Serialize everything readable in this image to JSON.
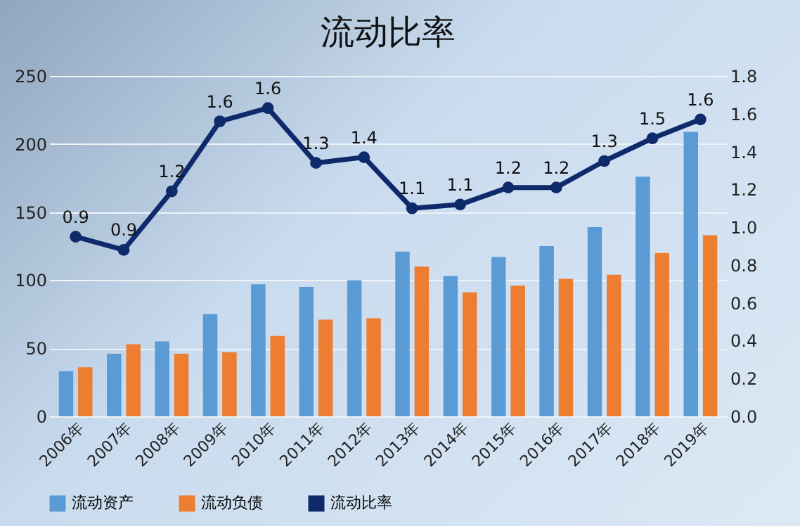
{
  "chart_data": {
    "type": "bar",
    "title": "流动比率",
    "categories": [
      "2006年",
      "2007年",
      "2008年",
      "2009年",
      "2010年",
      "2011年",
      "2012年",
      "2013年",
      "2014年",
      "2015年",
      "2016年",
      "2017年",
      "2018年",
      "2019年"
    ],
    "series": [
      {
        "name": "流动资产",
        "color": "#5b9bd5",
        "values": [
          33,
          46,
          55,
          75,
          97,
          95,
          100,
          121,
          103,
          117,
          125,
          139,
          176,
          209
        ]
      },
      {
        "name": "流动负债",
        "color": "#ed7d31",
        "values": [
          36,
          53,
          46,
          47,
          59,
          71,
          72,
          110,
          91,
          96,
          101,
          104,
          120,
          133
        ]
      },
      {
        "name": "流动比率",
        "type": "line",
        "axis": "y2",
        "color": "#0e2a6b",
        "values": [
          0.95,
          0.88,
          1.19,
          1.56,
          1.63,
          1.34,
          1.37,
          1.1,
          1.12,
          1.21,
          1.21,
          1.35,
          1.47,
          1.57
        ],
        "value_labels": [
          "0.9",
          "0.9",
          "1.2",
          "1.6",
          "1.6",
          "1.3",
          "1.4",
          "1.1",
          "1.1",
          "1.2",
          "1.2",
          "1.3",
          "1.5",
          "1.6"
        ]
      }
    ],
    "ylim": [
      0,
      250
    ],
    "yticks": [
      0,
      50,
      100,
      150,
      200,
      250
    ],
    "y2lim": [
      0,
      1.8
    ],
    "y2ticks": [
      {
        "value": 0,
        "label": "0.0"
      },
      0.2,
      0.4,
      0.6,
      0.8,
      {
        "value": 1,
        "label": "1.0"
      },
      1.2,
      1.4,
      1.6,
      1.8
    ],
    "grid": "y",
    "legend": "bottom",
    "marker": "circle"
  }
}
